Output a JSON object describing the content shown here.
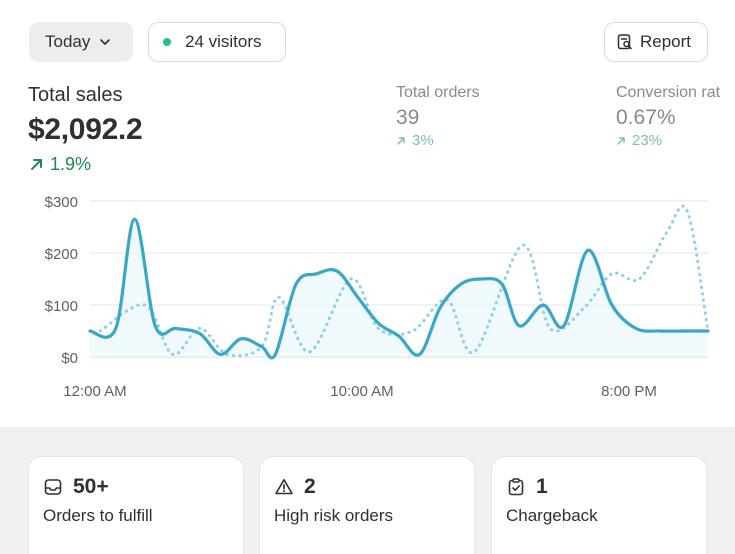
{
  "filters": {
    "date_label": "Today",
    "visitors_label": "24 visitors",
    "report_label": "Report"
  },
  "total_sales": {
    "label": "Total sales",
    "value": "$2,092.2",
    "change": "1.9%"
  },
  "total_orders": {
    "label": "Total orders",
    "value": "39",
    "change": "3%"
  },
  "conversion_rate": {
    "label": "Conversion rat",
    "value": "0.67%",
    "change": "23%"
  },
  "colors": {
    "primary_line": "#3aa6c8",
    "comparison_line": "#8fd0e4",
    "positive": "#1d8a52",
    "live_dot": "#29bc8f"
  },
  "chart_data": {
    "type": "line",
    "yticks": [
      "$300",
      "$200",
      "$100",
      "$0"
    ],
    "ylim": [
      0,
      300
    ],
    "xticks": [
      "12:00 AM",
      "10:00 AM",
      "8:00 PM"
    ],
    "grid": true,
    "series": [
      {
        "style": "solid",
        "values": [
          [
            0,
            50
          ],
          [
            0.75,
            55
          ],
          [
            1.3,
            265
          ],
          [
            1.9,
            60
          ],
          [
            2.5,
            55
          ],
          [
            3.2,
            45
          ],
          [
            3.8,
            5
          ],
          [
            4.4,
            35
          ],
          [
            5.0,
            20
          ],
          [
            5.4,
            5
          ],
          [
            6.0,
            140
          ],
          [
            6.6,
            160
          ],
          [
            7.2,
            165
          ],
          [
            7.8,
            115
          ],
          [
            8.4,
            65
          ],
          [
            9.0,
            40
          ],
          [
            9.6,
            5
          ],
          [
            10.2,
            95
          ],
          [
            10.8,
            140
          ],
          [
            11.4,
            150
          ],
          [
            12.0,
            140
          ],
          [
            12.5,
            60
          ],
          [
            13.2,
            100
          ],
          [
            13.8,
            60
          ],
          [
            14.5,
            205
          ],
          [
            15.2,
            100
          ],
          [
            15.9,
            55
          ],
          [
            16.6,
            50
          ],
          [
            17.3,
            50
          ],
          [
            18.0,
            50
          ]
        ]
      },
      {
        "style": "dotted",
        "values": [
          [
            0.3,
            50
          ],
          [
            1.6,
            100
          ],
          [
            2.4,
            5
          ],
          [
            3.2,
            55
          ],
          [
            4.0,
            5
          ],
          [
            5.0,
            20
          ],
          [
            5.5,
            115
          ],
          [
            6.4,
            10
          ],
          [
            7.6,
            150
          ],
          [
            8.4,
            55
          ],
          [
            9.4,
            50
          ],
          [
            10.4,
            110
          ],
          [
            11.2,
            10
          ],
          [
            12.6,
            215
          ],
          [
            13.4,
            55
          ],
          [
            14.4,
            95
          ],
          [
            15.2,
            160
          ],
          [
            16.0,
            150
          ],
          [
            16.8,
            240
          ],
          [
            17.4,
            280
          ],
          [
            18.0,
            50
          ]
        ]
      }
    ]
  },
  "tasks": [
    {
      "count": "50+",
      "label": "Orders to fulfill"
    },
    {
      "count": "2",
      "label": "High risk orders"
    },
    {
      "count": "1",
      "label": "Chargeback"
    }
  ]
}
